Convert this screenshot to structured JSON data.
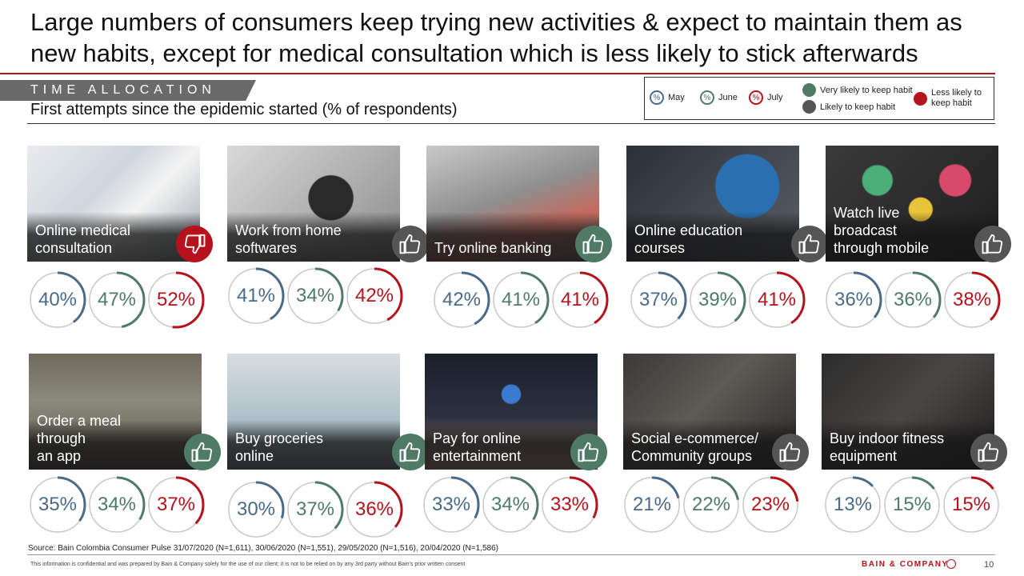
{
  "title": "Large numbers of consumers keep trying new activities & expect to maintain them as new habits, except for medical consultation which is less likely to stick afterwards",
  "section_tag": "TIME ALLOCATION",
  "subtitle": "First attempts since the epidemic started (% of respondents)",
  "legend": {
    "ring_symbol": "%",
    "may": "May",
    "june": "June",
    "july": "July",
    "very_likely": "Very likely to keep habit",
    "likely": "Likely to keep habit",
    "less_likely": "Less likely to keep habit"
  },
  "colors": {
    "may": "#4a6a88",
    "june": "#4f7a6a",
    "july": "#b5121b",
    "very_likely": "#4f7a66",
    "likely": "#555555",
    "less_likely": "#b5121b",
    "ring_track": "#c8c8c8"
  },
  "activities": [
    {
      "label_line1": "Online medical",
      "label_line2": "consultation",
      "habit": "less_likely",
      "may": "40%",
      "june": "47%",
      "july": "52%",
      "may_value": 40,
      "june_value": 47,
      "july_value": 52,
      "photo": "medical"
    },
    {
      "label_line1": "Work from home",
      "label_line2": "softwares",
      "habit": "likely",
      "may": "41%",
      "june": "34%",
      "july": "42%",
      "may_value": 41,
      "june_value": 34,
      "july_value": 42,
      "photo": "headset"
    },
    {
      "label_line1": "Try online banking",
      "label_line2": "",
      "habit": "very_likely",
      "may": "42%",
      "june": "41%",
      "july": "41%",
      "may_value": 42,
      "june_value": 41,
      "july_value": 41,
      "photo": "banking"
    },
    {
      "label_line1": "Online education",
      "label_line2": "courses",
      "habit": "likely",
      "may": "37%",
      "june": "39%",
      "july": "41%",
      "may_value": 37,
      "june_value": 39,
      "july_value": 41,
      "photo": "education"
    },
    {
      "label_line1": "Watch live broadcast",
      "label_line2": "through mobile",
      "habit": "likely",
      "may": "36%",
      "june": "36%",
      "july": "38%",
      "may_value": 36,
      "june_value": 36,
      "july_value": 38,
      "photo": "mobile"
    },
    {
      "label_line1": "Order a meal through",
      "label_line2": "an app",
      "habit": "very_likely",
      "may": "35%",
      "june": "34%",
      "july": "37%",
      "may_value": 35,
      "june_value": 34,
      "july_value": 37,
      "photo": "street"
    },
    {
      "label_line1": "Buy groceries",
      "label_line2": "online",
      "habit": "very_likely",
      "may": "30%",
      "june": "37%",
      "july": "36%",
      "may_value": 30,
      "june_value": 37,
      "july_value": 36,
      "photo": "carts"
    },
    {
      "label_line1": "Pay for online",
      "label_line2": "entertainment",
      "habit": "very_likely",
      "may": "33%",
      "june": "34%",
      "july": "33%",
      "may_value": 33,
      "june_value": 34,
      "july_value": 33,
      "photo": "tv"
    },
    {
      "label_line1": "Social e-commerce/",
      "label_line2": "Community groups",
      "habit": "likely",
      "may": "21%",
      "june": "22%",
      "july": "23%",
      "may_value": 21,
      "june_value": 22,
      "july_value": 23,
      "photo": "laptop"
    },
    {
      "label_line1": "Buy indoor fitness",
      "label_line2": "equipment",
      "habit": "likely",
      "may": "13%",
      "june": "15%",
      "july": "15%",
      "may_value": 13,
      "june_value": 15,
      "july_value": 15,
      "photo": "fitness"
    }
  ],
  "source": "Source: Bain Colombia Consumer Pulse 31/07/2020 (N=1,611), 30/06/2020 (N=1,551), 29/05/2020 (N=1,516), 20/04/2020 (N=1,586)",
  "disclaimer": "This information is confidential and was prepared by Bain & Company solely for the use of our client; it is not to be relied on by any 3rd party without Bain's prior written consent",
  "brand": "BAIN & COMPANY",
  "page_number": "10"
}
